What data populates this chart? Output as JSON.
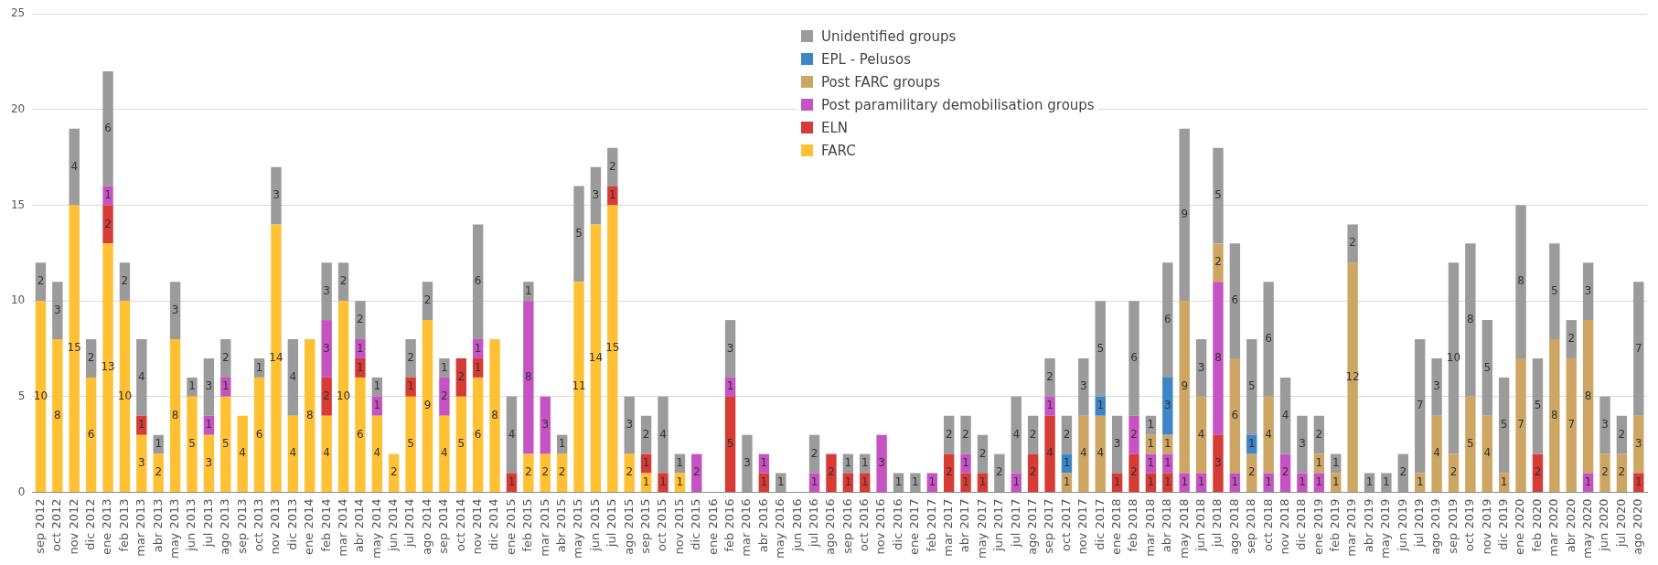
{
  "chart_data": {
    "type": "bar",
    "stacked": true,
    "data_labels": true,
    "grid": "y",
    "legend": "top",
    "ylim": [
      0,
      25
    ],
    "yticks": [
      0,
      5,
      10,
      15,
      20,
      25
    ],
    "categories": [
      "sep 2012",
      "oct 2012",
      "nov 2012",
      "dic 2012",
      "ene 2013",
      "feb 2013",
      "mar 2013",
      "abr 2013",
      "may 2013",
      "jun 2013",
      "jul 2013",
      "ago 2013",
      "sep 2013",
      "oct 2013",
      "nov 2013",
      "dic 2013",
      "ene 2014",
      "feb 2014",
      "mar 2014",
      "abr 2014",
      "may 2014",
      "jun 2014",
      "jul 2014",
      "ago 2014",
      "sep 2014",
      "oct 2014",
      "nov 2014",
      "dic 2014",
      "ene 2015",
      "feb 2015",
      "mar 2015",
      "abr 2015",
      "may 2015",
      "jun 2015",
      "jul 2015",
      "ago 2015",
      "sep 2015",
      "oct 2015",
      "nov 2015",
      "dic 2015",
      "ene 2016",
      "feb 2016",
      "mar 2016",
      "abr 2016",
      "may 2016",
      "jun 2016",
      "jul 2016",
      "ago 2016",
      "sep 2016",
      "oct 2016",
      "nov 2016",
      "dic 2016",
      "ene 2017",
      "feb 2017",
      "mar 2017",
      "abr 2017",
      "may 2017",
      "jun 2017",
      "jul 2017",
      "ago 2017",
      "sep 2017",
      "oct 2017",
      "nov 2017",
      "dic 2017",
      "ene 2018",
      "feb 2018",
      "mar 2018",
      "abr 2018",
      "may 2018",
      "jun 2018",
      "jul 2018",
      "ago 2018",
      "sep 2018",
      "oct 2018",
      "nov 2018",
      "dic 2018",
      "ene 2019",
      "feb 2019",
      "mar 2019",
      "abr 2019",
      "may 2019",
      "jun 2019",
      "jul 2019",
      "ago 2019",
      "sep 2019",
      "oct 2019",
      "nov 2019",
      "dic 2019",
      "ene 2020",
      "feb 2020",
      "mar 2020",
      "abr 2020",
      "may 2020",
      "jun 2020",
      "jul 2020",
      "ago 2020"
    ],
    "series": [
      {
        "name": "FARC",
        "color": "#ffc133",
        "values": [
          10,
          8,
          15,
          6,
          13,
          10,
          3,
          2,
          8,
          5,
          3,
          5,
          4,
          6,
          14,
          4,
          8,
          4,
          10,
          6,
          4,
          2,
          5,
          9,
          4,
          5,
          6,
          8,
          null,
          2,
          2,
          2,
          11,
          14,
          15,
          2,
          1,
          null,
          1,
          null,
          null,
          null,
          null,
          null,
          null,
          null,
          null,
          null,
          null,
          null,
          null,
          null,
          null,
          null,
          null,
          null,
          null,
          null,
          null,
          null,
          null,
          null,
          null,
          null,
          null,
          null,
          null,
          null,
          null,
          null,
          null,
          null,
          null,
          null,
          null,
          null,
          null,
          null,
          null,
          null,
          null,
          null,
          null,
          null,
          null,
          null,
          null,
          null,
          null,
          null,
          null,
          null,
          null,
          null,
          null,
          null
        ]
      },
      {
        "name": "ELN",
        "color": "#d63b36",
        "values": [
          null,
          null,
          null,
          null,
          2,
          null,
          1,
          null,
          null,
          null,
          null,
          null,
          null,
          null,
          null,
          null,
          null,
          2,
          null,
          1,
          null,
          null,
          1,
          null,
          null,
          2,
          1,
          null,
          1,
          null,
          null,
          null,
          null,
          null,
          1,
          null,
          1,
          1,
          null,
          null,
          null,
          5,
          null,
          1,
          null,
          null,
          null,
          2,
          1,
          1,
          null,
          null,
          null,
          null,
          2,
          1,
          1,
          null,
          null,
          2,
          4,
          null,
          null,
          null,
          1,
          2,
          1,
          1,
          null,
          null,
          3,
          null,
          null,
          null,
          null,
          null,
          null,
          null,
          null,
          null,
          null,
          null,
          null,
          null,
          null,
          null,
          null,
          null,
          null,
          2,
          null,
          null,
          null,
          null,
          null,
          1
        ]
      },
      {
        "name": "Post paramilitary demobilisation groups",
        "color": "#c653c2",
        "values": [
          null,
          null,
          null,
          null,
          1,
          null,
          null,
          null,
          null,
          null,
          1,
          1,
          null,
          null,
          null,
          null,
          null,
          3,
          null,
          1,
          1,
          null,
          null,
          null,
          2,
          null,
          1,
          null,
          null,
          8,
          3,
          null,
          null,
          null,
          null,
          null,
          null,
          null,
          null,
          2,
          null,
          1,
          null,
          1,
          null,
          null,
          1,
          null,
          null,
          null,
          3,
          null,
          null,
          1,
          null,
          1,
          null,
          null,
          1,
          null,
          1,
          null,
          null,
          null,
          null,
          2,
          1,
          1,
          1,
          1,
          8,
          1,
          null,
          1,
          2,
          1,
          1,
          null,
          null,
          null,
          null,
          null,
          null,
          null,
          null,
          null,
          null,
          null,
          null,
          null,
          null,
          null,
          1,
          null,
          null,
          null
        ]
      },
      {
        "name": "Post FARC groups",
        "color": "#cda663",
        "values": [
          null,
          null,
          null,
          null,
          null,
          null,
          null,
          null,
          null,
          null,
          null,
          null,
          null,
          null,
          null,
          null,
          null,
          null,
          null,
          null,
          null,
          null,
          null,
          null,
          null,
          null,
          null,
          null,
          null,
          null,
          null,
          null,
          null,
          null,
          null,
          null,
          null,
          null,
          null,
          null,
          null,
          null,
          null,
          null,
          null,
          null,
          null,
          null,
          null,
          null,
          null,
          null,
          null,
          null,
          null,
          null,
          null,
          null,
          null,
          null,
          null,
          1,
          4,
          4,
          null,
          null,
          1,
          1,
          9,
          4,
          2,
          6,
          2,
          4,
          null,
          null,
          1,
          1,
          12,
          null,
          null,
          null,
          1,
          4,
          2,
          5,
          4,
          1,
          7,
          null,
          8,
          7,
          8,
          2,
          2,
          3
        ]
      },
      {
        "name": "EPL - Pelusos",
        "color": "#3d85c6",
        "values": [
          null,
          null,
          null,
          null,
          null,
          null,
          null,
          null,
          null,
          null,
          null,
          null,
          null,
          null,
          null,
          null,
          null,
          null,
          null,
          null,
          null,
          null,
          null,
          null,
          null,
          null,
          null,
          null,
          null,
          null,
          null,
          null,
          null,
          null,
          null,
          null,
          null,
          null,
          null,
          null,
          null,
          null,
          null,
          null,
          null,
          null,
          null,
          null,
          null,
          null,
          null,
          null,
          null,
          null,
          null,
          null,
          null,
          null,
          null,
          null,
          null,
          1,
          null,
          1,
          null,
          null,
          null,
          3,
          null,
          null,
          null,
          null,
          1,
          null,
          null,
          null,
          null,
          null,
          null,
          null,
          null,
          null,
          null,
          null,
          null,
          null,
          null,
          null,
          null,
          null,
          null,
          null,
          null,
          null,
          null,
          null
        ]
      },
      {
        "name": "Unidentified groups",
        "color": "#9b9b9b",
        "values": [
          2,
          3,
          4,
          2,
          6,
          2,
          4,
          1,
          3,
          1,
          3,
          2,
          null,
          1,
          3,
          4,
          null,
          3,
          2,
          2,
          1,
          null,
          2,
          2,
          1,
          null,
          6,
          null,
          4,
          1,
          null,
          1,
          5,
          3,
          2,
          3,
          2,
          4,
          1,
          null,
          null,
          3,
          3,
          null,
          1,
          null,
          2,
          null,
          1,
          1,
          null,
          1,
          1,
          null,
          2,
          2,
          2,
          2,
          4,
          2,
          2,
          2,
          3,
          5,
          3,
          6,
          1,
          6,
          9,
          3,
          5,
          6,
          5,
          6,
          4,
          3,
          2,
          1,
          2,
          1,
          1,
          2,
          7,
          3,
          10,
          8,
          5,
          5,
          8,
          5,
          5,
          2,
          3,
          3,
          2,
          7
        ]
      }
    ]
  }
}
